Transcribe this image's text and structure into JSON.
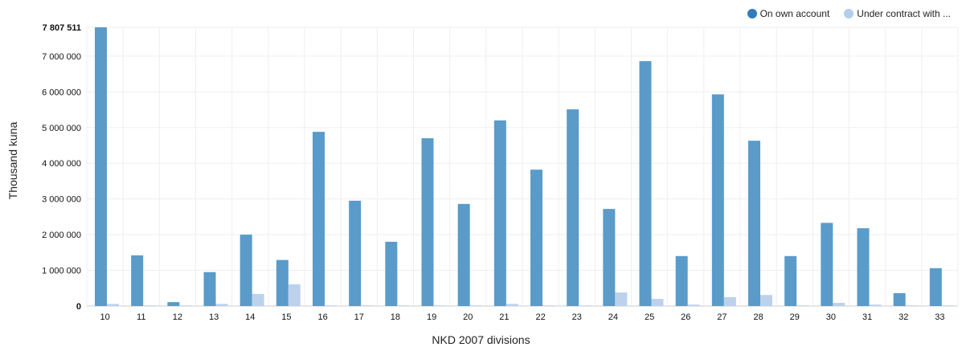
{
  "chart_data": {
    "type": "bar",
    "xlabel": "NKD 2007 divisions",
    "ylabel": "Thousand kuna",
    "ylim": [
      0,
      7807511
    ],
    "yticks": [
      0,
      1000000,
      2000000,
      3000000,
      4000000,
      5000000,
      6000000,
      7000000,
      7807511
    ],
    "ytick_labels": [
      "0",
      "1 000 000",
      "2 000 000",
      "3 000 000",
      "4 000 000",
      "5 000 000",
      "6 000 000",
      "7 000 000",
      "7 807 511"
    ],
    "grid": true,
    "legend_position": "top-right",
    "categories": [
      "10",
      "11",
      "12",
      "13",
      "14",
      "15",
      "16",
      "17",
      "18",
      "19",
      "20",
      "21",
      "22",
      "23",
      "24",
      "25",
      "26",
      "27",
      "28",
      "29",
      "30",
      "31",
      "32",
      "33"
    ],
    "series": [
      {
        "name": "On own account",
        "color": "#5a9bc9",
        "values": [
          7807511,
          1420000,
          110000,
          950000,
          2000000,
          1290000,
          4880000,
          2950000,
          1800000,
          4700000,
          2860000,
          5200000,
          3820000,
          5510000,
          2720000,
          6860000,
          1400000,
          5930000,
          4630000,
          1400000,
          2330000,
          2180000,
          360000,
          1060000
        ]
      },
      {
        "name": "Under contract with ...",
        "color": "#bcd2ec",
        "values": [
          60000,
          15000,
          5000,
          60000,
          340000,
          610000,
          15000,
          15000,
          15000,
          15000,
          15000,
          60000,
          15000,
          15000,
          380000,
          200000,
          40000,
          250000,
          310000,
          15000,
          90000,
          40000,
          5000,
          5000
        ]
      }
    ]
  },
  "legend": {
    "items": [
      {
        "label": "On own account",
        "color": "#2f7bc0"
      },
      {
        "label": "Under contract with ...",
        "color": "#b3cdeb"
      }
    ]
  }
}
